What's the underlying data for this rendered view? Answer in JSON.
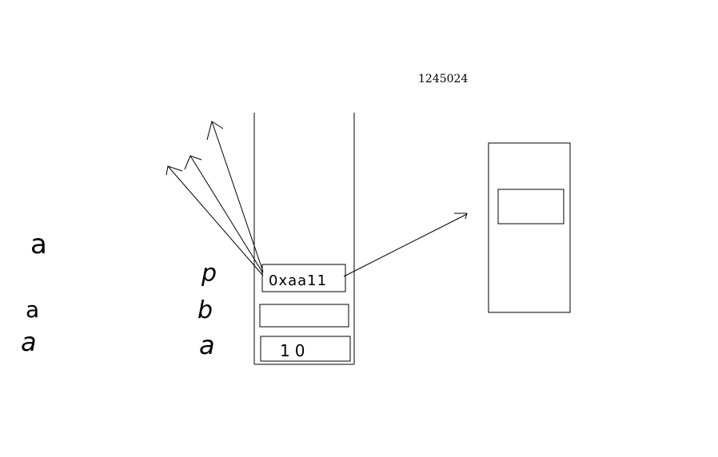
{
  "canvas": {
    "background": "#ffffff",
    "ink": "#000000"
  },
  "heap_address": "1245024",
  "stack": {
    "frames": [
      {
        "var": "p",
        "value": "0xaa11"
      },
      {
        "var": "b",
        "value": ""
      },
      {
        "var": "a",
        "value": "10"
      }
    ]
  },
  "left_letters": [
    "a",
    "a",
    "a"
  ],
  "heap_object": {
    "inner_field_value": ""
  }
}
